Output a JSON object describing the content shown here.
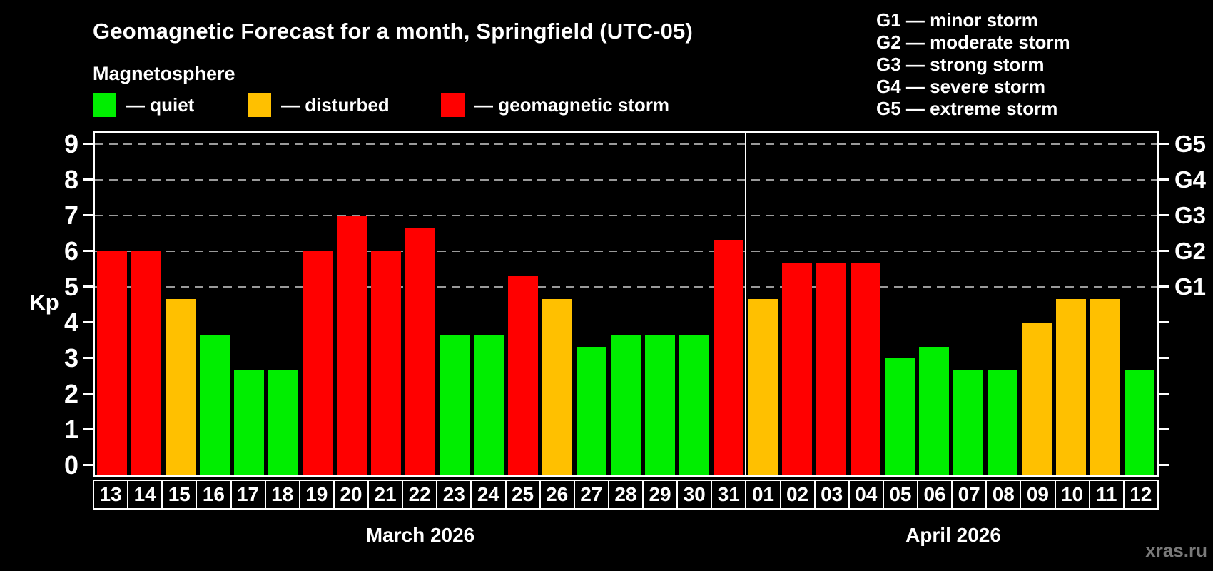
{
  "title": "Geomagnetic Forecast for a month, Springfield (UTC-05)",
  "subtitle": "Magnetosphere",
  "legend": {
    "items": [
      {
        "name": "quiet",
        "label": "— quiet",
        "color": "#00ee00"
      },
      {
        "name": "disturbed",
        "label": "— disturbed",
        "color": "#ffc000"
      },
      {
        "name": "storm",
        "label": "— geomagnetic storm",
        "color": "#ff0000"
      }
    ]
  },
  "storm_scale": [
    {
      "text": "G1 — minor storm"
    },
    {
      "text": "G2 — moderate storm"
    },
    {
      "text": "G3 — strong storm"
    },
    {
      "text": "G4 — severe storm"
    },
    {
      "text": "G5 — extreme storm"
    }
  ],
  "watermark": "xras.ru",
  "chart_data": {
    "type": "bar",
    "title": "Geomagnetic Forecast for a month, Springfield (UTC-05)",
    "ylabel": "Kp",
    "ylim": [
      0,
      9.3
    ],
    "y_ticks": [
      0,
      1,
      2,
      3,
      4,
      5,
      6,
      7,
      8,
      9
    ],
    "gridlines_at": [
      5,
      6,
      7,
      8,
      9
    ],
    "grid": "dashed, only at storm levels G1–G5",
    "legend_position": "top",
    "right_axis_labels": [
      {
        "kp": 9,
        "label": "G5"
      },
      {
        "kp": 8,
        "label": "G4"
      },
      {
        "kp": 7,
        "label": "G3"
      },
      {
        "kp": 6,
        "label": "G2"
      },
      {
        "kp": 5,
        "label": "G1"
      }
    ],
    "status_colors": {
      "quiet": "#00ee00",
      "disturbed": "#ffc000",
      "storm": "#ff0000"
    },
    "months": [
      {
        "label": "March 2026",
        "days": [
          {
            "day": "13",
            "kp": 6.0,
            "status": "storm"
          },
          {
            "day": "14",
            "kp": 6.0,
            "status": "storm"
          },
          {
            "day": "15",
            "kp": 4.67,
            "status": "disturbed"
          },
          {
            "day": "16",
            "kp": 3.67,
            "status": "quiet"
          },
          {
            "day": "17",
            "kp": 2.67,
            "status": "quiet"
          },
          {
            "day": "18",
            "kp": 2.67,
            "status": "quiet"
          },
          {
            "day": "19",
            "kp": 6.0,
            "status": "storm"
          },
          {
            "day": "20",
            "kp": 7.0,
            "status": "storm"
          },
          {
            "day": "21",
            "kp": 6.0,
            "status": "storm"
          },
          {
            "day": "22",
            "kp": 6.67,
            "status": "storm"
          },
          {
            "day": "23",
            "kp": 3.67,
            "status": "quiet"
          },
          {
            "day": "24",
            "kp": 3.67,
            "status": "quiet"
          },
          {
            "day": "25",
            "kp": 5.33,
            "status": "storm"
          },
          {
            "day": "26",
            "kp": 4.67,
            "status": "disturbed"
          },
          {
            "day": "27",
            "kp": 3.33,
            "status": "quiet"
          },
          {
            "day": "28",
            "kp": 3.67,
            "status": "quiet"
          },
          {
            "day": "29",
            "kp": 3.67,
            "status": "quiet"
          },
          {
            "day": "30",
            "kp": 3.67,
            "status": "quiet"
          },
          {
            "day": "31",
            "kp": 6.33,
            "status": "storm"
          }
        ]
      },
      {
        "label": "April 2026",
        "days": [
          {
            "day": "01",
            "kp": 4.67,
            "status": "disturbed"
          },
          {
            "day": "02",
            "kp": 5.67,
            "status": "storm"
          },
          {
            "day": "03",
            "kp": 5.67,
            "status": "storm"
          },
          {
            "day": "04",
            "kp": 5.67,
            "status": "storm"
          },
          {
            "day": "05",
            "kp": 3.0,
            "status": "quiet"
          },
          {
            "day": "06",
            "kp": 3.33,
            "status": "quiet"
          },
          {
            "day": "07",
            "kp": 2.67,
            "status": "quiet"
          },
          {
            "day": "08",
            "kp": 2.67,
            "status": "quiet"
          },
          {
            "day": "09",
            "kp": 4.0,
            "status": "disturbed"
          },
          {
            "day": "10",
            "kp": 4.67,
            "status": "disturbed"
          },
          {
            "day": "11",
            "kp": 4.67,
            "status": "disturbed"
          },
          {
            "day": "12",
            "kp": 2.67,
            "status": "quiet"
          }
        ]
      }
    ]
  }
}
